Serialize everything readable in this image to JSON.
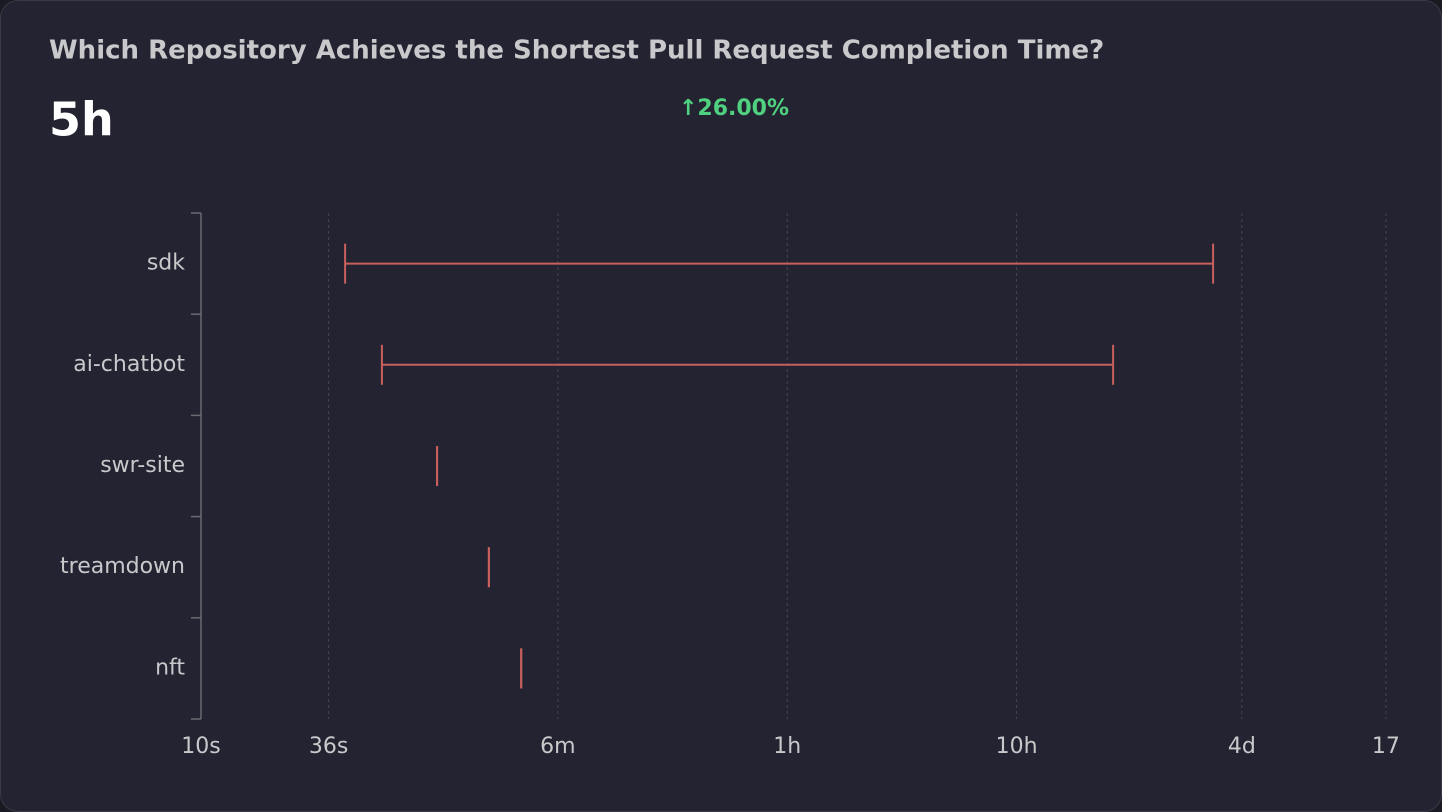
{
  "header": {
    "title": "Which Repository Achieves the Shortest Pull Request Completion Time?",
    "value": "5h",
    "change": "↑26.00%"
  },
  "chart_data": {
    "type": "range",
    "color": "#c8605d",
    "categories": [
      "sdk",
      "ai-chatbot",
      "swr-site",
      "treamdown",
      "nft"
    ],
    "starts": [
      42.5,
      61.5,
      107,
      180,
      249
    ],
    "ends": [
      259000,
      94900,
      107,
      180,
      249
    ],
    "log_x": true,
    "grid": true,
    "xlim": [
      10,
      1530000
    ],
    "xticks": [
      {
        "value": 10,
        "label": "10s"
      },
      {
        "value": 36,
        "label": "36s"
      },
      {
        "value": 360,
        "label": "6m"
      },
      {
        "value": 3600,
        "label": "1h"
      },
      {
        "value": 36000,
        "label": "10h"
      },
      {
        "value": 345600,
        "label": "4d"
      },
      {
        "value": 1468800,
        "label": "17"
      }
    ]
  }
}
